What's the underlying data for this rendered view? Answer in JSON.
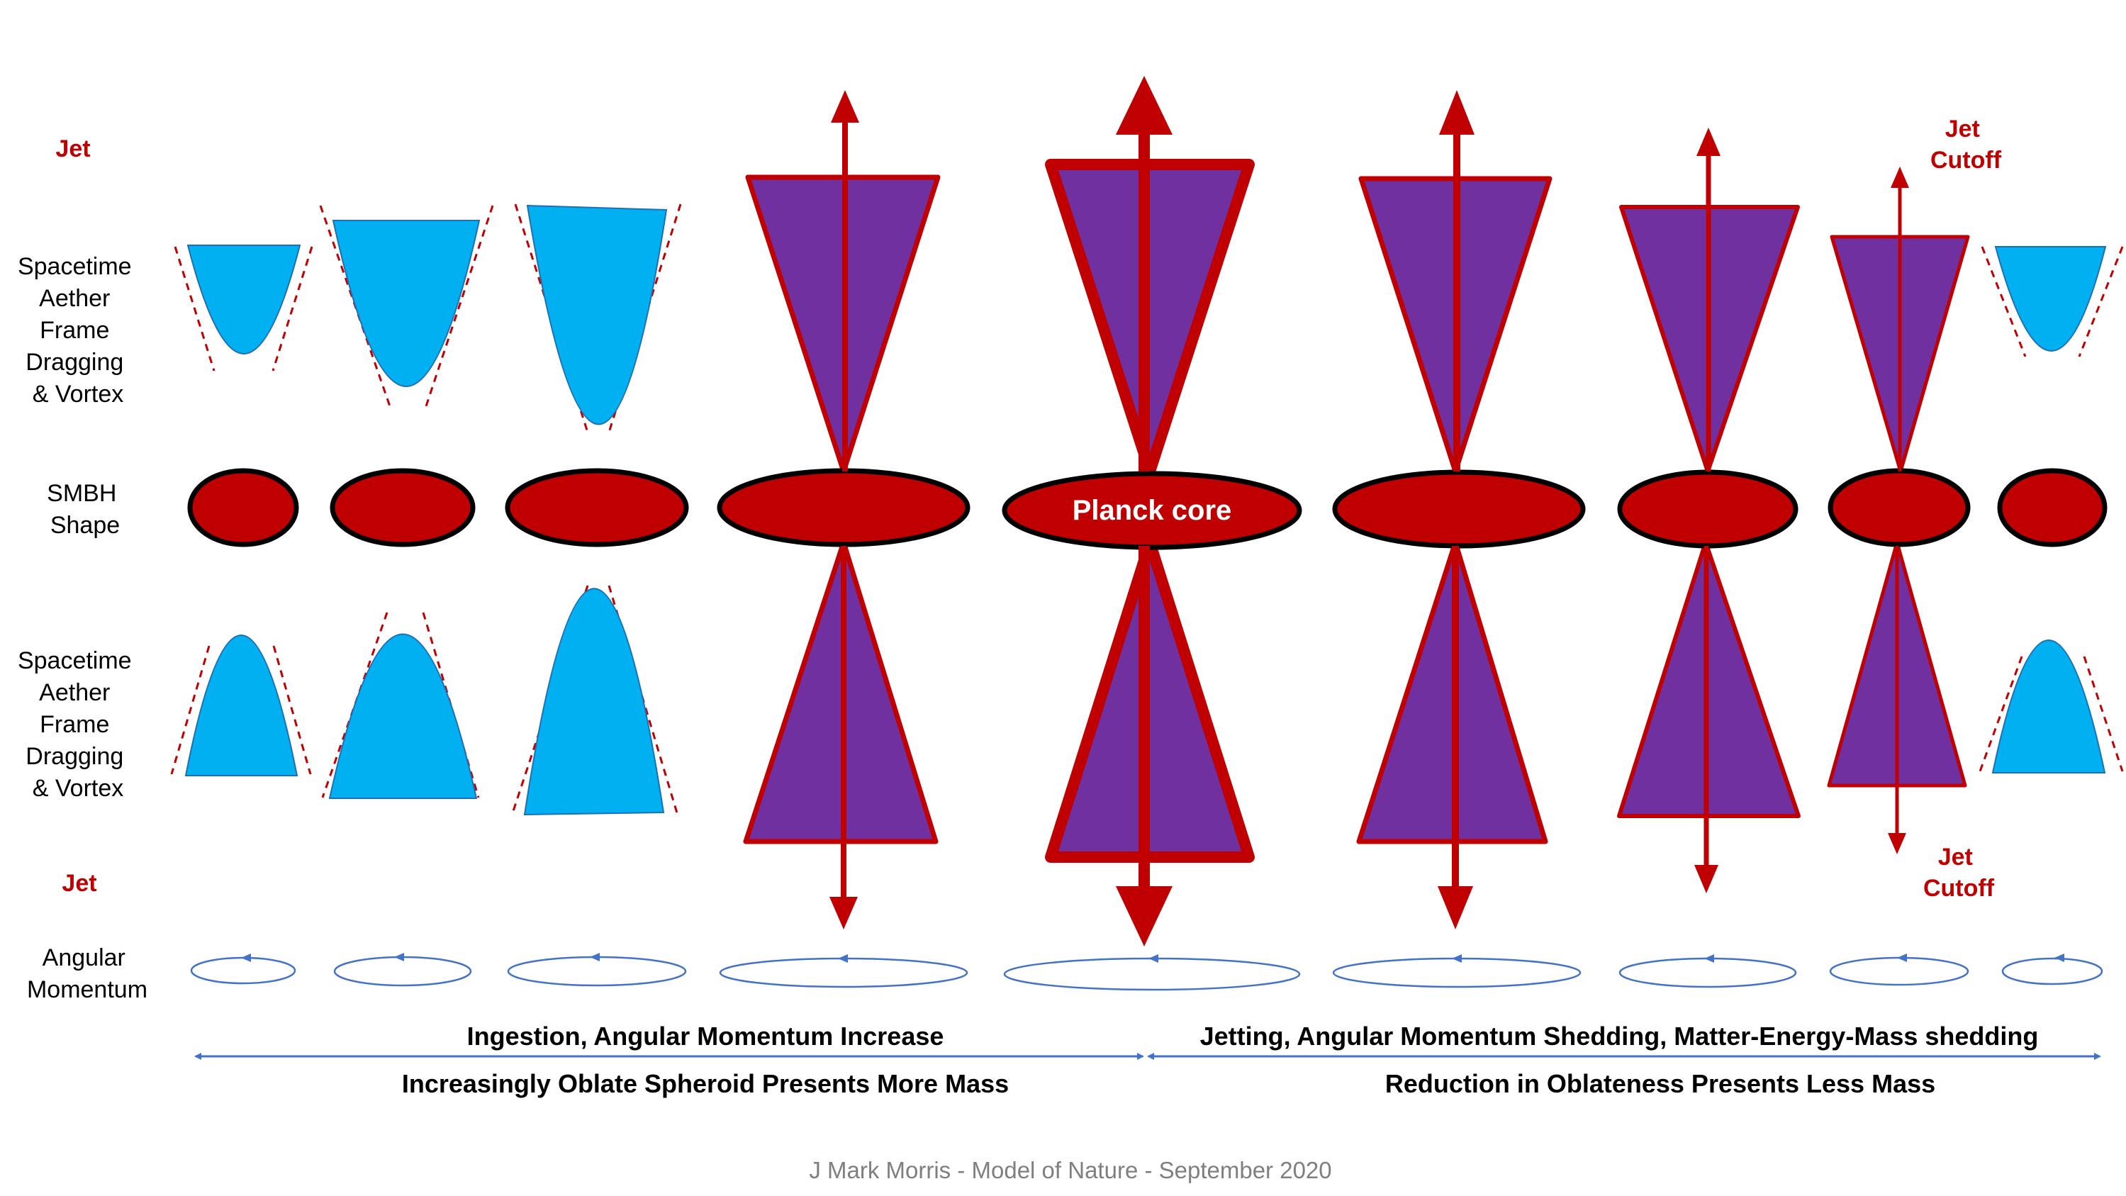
{
  "row_labels": {
    "jet_top": "Jet",
    "spacetime_top": [
      "Spacetime",
      "Aether",
      "Frame",
      "Dragging",
      "& Vortex"
    ],
    "smbh": [
      "SMBH",
      "Shape"
    ],
    "spacetime_bottom": [
      "Spacetime",
      "Aether",
      "Frame",
      "Dragging",
      "& Vortex"
    ],
    "jet_bottom": "Jet",
    "angular_momentum": [
      "Angular",
      "Momentum"
    ]
  },
  "annotations": {
    "jet_cutoff_top": [
      "Jet",
      "Cutoff"
    ],
    "jet_cutoff_bottom": [
      "Jet",
      "Cutoff"
    ],
    "planck_core": "Planck core"
  },
  "phases": {
    "left_line1": "Ingestion, Angular Momentum Increase",
    "left_line2": "Increasingly Oblate Spheroid Presents More Mass",
    "right_line1": "Jetting, Angular Momentum Shedding, Matter-Energy-Mass shedding",
    "right_line2": "Reduction in Oblateness Presents Less Mass"
  },
  "footer": "J Mark Morris - Model of Nature - September 2020",
  "colors": {
    "dark_red": "#c00000",
    "funnel_blue": "#00b0f0",
    "cone_purple": "#7030a0",
    "arrow_blue": "#4472c4",
    "label_black": "#000000",
    "footer_gray": "#7f7f7f"
  }
}
